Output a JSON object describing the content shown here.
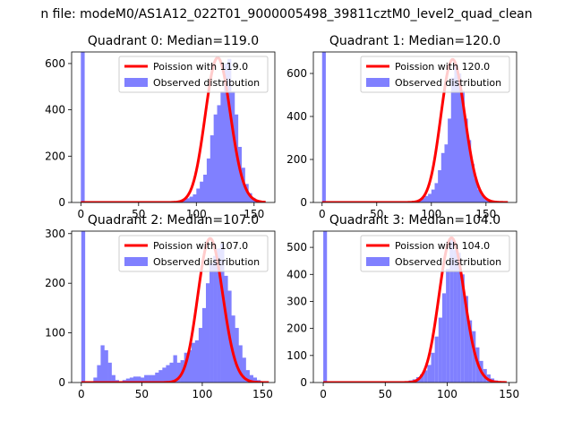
{
  "figure": {
    "suptitle": "n file: modeM0/AS1A12_022T01_9000005498_39811cztM0_level2_quad_clean"
  },
  "colors": {
    "histogram": "#8080ff",
    "poisson": "#ff0000",
    "legend_border": "#cccccc"
  },
  "chart_data": [
    {
      "type": "bar",
      "title": "Quadrant 0: Median=119.0",
      "xlim": [
        -8,
        168
      ],
      "ylim": [
        0,
        650
      ],
      "xticks": [
        0,
        50,
        100,
        150
      ],
      "yticks": [
        0,
        200,
        400,
        600
      ],
      "bin_width": 3.3,
      "bins": [
        [
          0,
          650
        ],
        [
          73,
          1
        ],
        [
          76,
          2
        ],
        [
          79,
          3
        ],
        [
          82,
          5
        ],
        [
          85,
          8
        ],
        [
          88,
          12
        ],
        [
          91,
          18
        ],
        [
          94,
          25
        ],
        [
          97,
          35
        ],
        [
          100,
          60
        ],
        [
          103,
          90
        ],
        [
          106,
          120
        ],
        [
          109,
          190
        ],
        [
          112,
          290
        ],
        [
          115,
          380
        ],
        [
          118,
          420
        ],
        [
          121,
          480
        ],
        [
          124,
          600
        ],
        [
          127,
          620
        ],
        [
          130,
          480
        ],
        [
          133,
          380
        ],
        [
          136,
          240
        ],
        [
          139,
          150
        ],
        [
          142,
          80
        ],
        [
          145,
          40
        ],
        [
          148,
          20
        ],
        [
          151,
          10
        ],
        [
          154,
          5
        ],
        [
          157,
          2
        ]
      ],
      "series": [
        {
          "kind": "histogram",
          "name": "Observed distribution"
        },
        {
          "kind": "line",
          "name": "Poission with 119.0",
          "mean": 119.0,
          "peak": 625,
          "x_range": [
            0,
            160
          ]
        }
      ]
    },
    {
      "type": "bar",
      "title": "Quadrant 1: Median=120.0",
      "xlim": [
        -8,
        178
      ],
      "ylim": [
        0,
        700
      ],
      "xticks": [
        0,
        50,
        100,
        150
      ],
      "yticks": [
        0,
        200,
        400,
        600
      ],
      "bin_width": 3.4,
      "bins": [
        [
          0,
          700
        ],
        [
          85,
          5
        ],
        [
          88,
          10
        ],
        [
          91,
          20
        ],
        [
          94,
          30
        ],
        [
          97,
          40
        ],
        [
          100,
          60
        ],
        [
          103,
          90
        ],
        [
          106,
          150
        ],
        [
          109,
          230
        ],
        [
          112,
          270
        ],
        [
          115,
          390
        ],
        [
          118,
          580
        ],
        [
          121,
          640
        ],
        [
          124,
          600
        ],
        [
          127,
          520
        ],
        [
          130,
          390
        ],
        [
          133,
          290
        ],
        [
          136,
          180
        ],
        [
          139,
          110
        ],
        [
          142,
          60
        ],
        [
          145,
          35
        ],
        [
          148,
          15
        ],
        [
          151,
          8
        ],
        [
          154,
          4
        ],
        [
          157,
          2
        ]
      ],
      "series": [
        {
          "kind": "histogram",
          "name": "Observed distribution"
        },
        {
          "kind": "line",
          "name": "Poission with 120.0",
          "mean": 120.0,
          "peak": 665,
          "x_range": [
            0,
            170
          ]
        }
      ]
    },
    {
      "type": "bar",
      "title": "Quadrant 2: Median=107.0",
      "xlim": [
        -8,
        160
      ],
      "ylim": [
        0,
        305
      ],
      "xticks": [
        0,
        50,
        100,
        150
      ],
      "yticks": [
        0,
        100,
        200,
        300
      ],
      "bin_width": 3.2,
      "bins": [
        [
          0,
          305
        ],
        [
          10,
          10
        ],
        [
          13,
          35
        ],
        [
          16,
          75
        ],
        [
          19,
          65
        ],
        [
          22,
          40
        ],
        [
          25,
          15
        ],
        [
          28,
          5
        ],
        [
          34,
          5
        ],
        [
          37,
          8
        ],
        [
          40,
          10
        ],
        [
          43,
          12
        ],
        [
          46,
          12
        ],
        [
          49,
          10
        ],
        [
          52,
          15
        ],
        [
          55,
          15
        ],
        [
          58,
          15
        ],
        [
          61,
          20
        ],
        [
          64,
          25
        ],
        [
          67,
          30
        ],
        [
          70,
          35
        ],
        [
          73,
          40
        ],
        [
          76,
          55
        ],
        [
          79,
          40
        ],
        [
          82,
          45
        ],
        [
          85,
          60
        ],
        [
          88,
          65
        ],
        [
          91,
          80
        ],
        [
          94,
          85
        ],
        [
          97,
          110
        ],
        [
          100,
          150
        ],
        [
          103,
          200
        ],
        [
          106,
          240
        ],
        [
          109,
          255
        ],
        [
          112,
          270
        ],
        [
          115,
          280
        ],
        [
          118,
          215
        ],
        [
          121,
          185
        ],
        [
          124,
          135
        ],
        [
          127,
          110
        ],
        [
          130,
          75
        ],
        [
          133,
          50
        ],
        [
          136,
          25
        ],
        [
          139,
          15
        ],
        [
          142,
          10
        ],
        [
          145,
          5
        ]
      ],
      "series": [
        {
          "kind": "histogram",
          "name": "Observed distribution"
        },
        {
          "kind": "line",
          "name": "Poission with 107.0",
          "mean": 107.0,
          "peak": 290,
          "x_range": [
            0,
            155
          ]
        }
      ]
    },
    {
      "type": "bar",
      "title": "Quadrant 3: Median=104.0",
      "xlim": [
        -8,
        156
      ],
      "ylim": [
        0,
        560
      ],
      "xticks": [
        0,
        50,
        100,
        150
      ],
      "yticks": [
        0,
        100,
        200,
        300,
        400,
        500
      ],
      "bin_width": 3.0,
      "bins": [
        [
          0,
          560
        ],
        [
          60,
          2
        ],
        [
          63,
          3
        ],
        [
          66,
          5
        ],
        [
          69,
          8
        ],
        [
          72,
          12
        ],
        [
          75,
          20
        ],
        [
          78,
          30
        ],
        [
          81,
          45
        ],
        [
          84,
          65
        ],
        [
          87,
          110
        ],
        [
          90,
          170
        ],
        [
          93,
          240
        ],
        [
          96,
          330
        ],
        [
          99,
          420
        ],
        [
          102,
          530
        ],
        [
          105,
          490
        ],
        [
          108,
          480
        ],
        [
          111,
          400
        ],
        [
          114,
          320
        ],
        [
          117,
          230
        ],
        [
          120,
          190
        ],
        [
          123,
          130
        ],
        [
          126,
          80
        ],
        [
          129,
          50
        ],
        [
          132,
          30
        ],
        [
          135,
          15
        ],
        [
          138,
          8
        ],
        [
          141,
          4
        ]
      ],
      "series": [
        {
          "kind": "histogram",
          "name": "Observed distribution"
        },
        {
          "kind": "line",
          "name": "Poission with 104.0",
          "mean": 104.0,
          "peak": 535,
          "x_range": [
            0,
            148
          ]
        }
      ]
    }
  ]
}
